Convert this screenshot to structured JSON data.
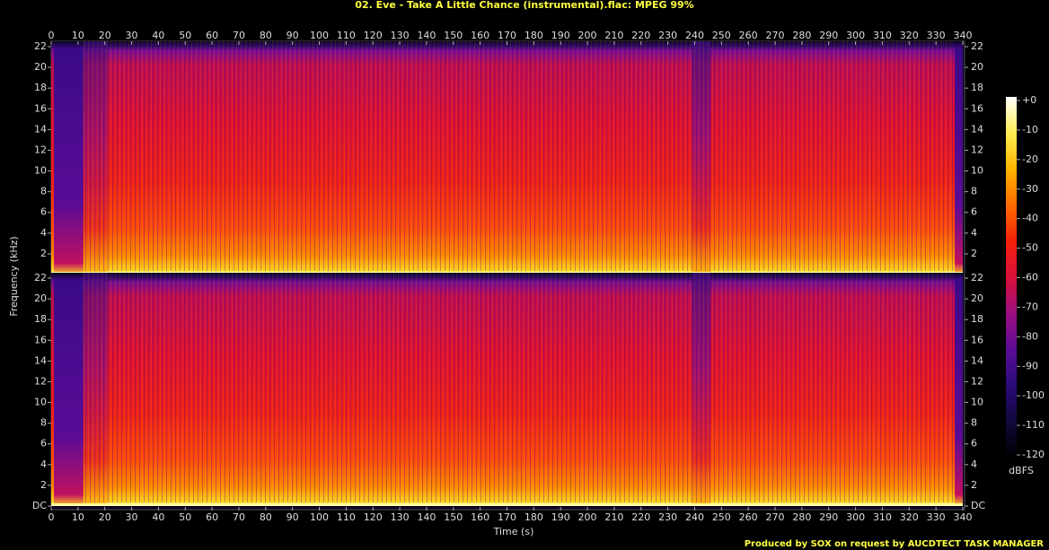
{
  "chart_data": {
    "type": "spectrogram",
    "title": "02. Eve - Take A Little Chance (instrumental).flac: MPEG 99%",
    "x_label": "Time (s)",
    "y_label": "Frequency (kHz)",
    "xlim": [
      0,
      340
    ],
    "xticks": [
      0,
      10,
      20,
      30,
      40,
      50,
      60,
      70,
      80,
      90,
      100,
      110,
      120,
      130,
      140,
      150,
      160,
      170,
      180,
      190,
      200,
      210,
      220,
      230,
      240,
      250,
      260,
      270,
      280,
      290,
      300,
      310,
      320,
      330,
      340
    ],
    "panels": [
      {
        "ylim": [
          0,
          22
        ],
        "yticks": [
          2,
          4,
          6,
          8,
          10,
          12,
          14,
          16,
          18,
          20,
          22
        ]
      },
      {
        "ylim": [
          0,
          22
        ],
        "yticks": [
          {
            "value": 0,
            "label": "DC"
          },
          2,
          4,
          6,
          8,
          10,
          12,
          14,
          16,
          18,
          20,
          22
        ]
      }
    ],
    "colorbar": {
      "label": "dBFS",
      "lim": [
        -120,
        0
      ],
      "ticks": [
        {
          "value": 0,
          "label": "+0"
        },
        -10,
        -20,
        -30,
        -40,
        -50,
        -60,
        -70,
        -80,
        -90,
        -100,
        -110,
        -120
      ],
      "colors": [
        "#000000",
        "#10083a",
        "#2a0a78",
        "#5a0c96",
        "#9a0e80",
        "#d8103a",
        "#f2200a",
        "#ff6a00",
        "#ffb400",
        "#ffee50",
        "#ffffff"
      ]
    },
    "footer": "Produced by SOX on request by AUCDTECT TASK MANAGER"
  }
}
